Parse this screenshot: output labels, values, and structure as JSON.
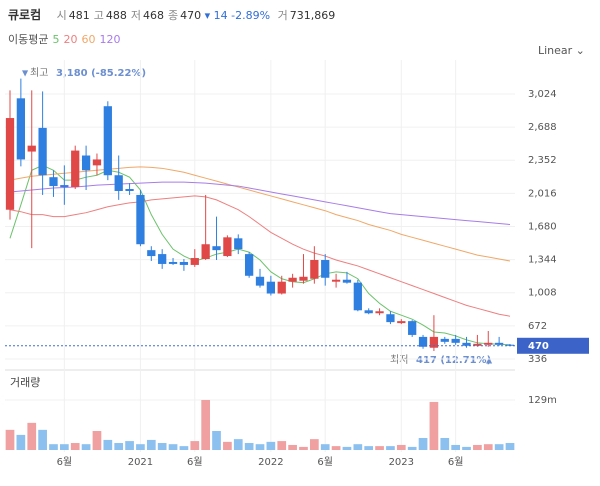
{
  "header": {
    "name": "큐로컴",
    "items": [
      {
        "k": "시",
        "v": "481"
      },
      {
        "k": "고",
        "v": "488"
      },
      {
        "k": "저",
        "v": "468"
      },
      {
        "k": "종",
        "v": "470"
      }
    ],
    "change": "14",
    "change_pct": "-2.89%",
    "volume_key": "거",
    "volume": "731,869"
  },
  "chart_data": {
    "type": "candlestick",
    "scale": "Linear",
    "ma_title": "이동평균",
    "categories": [
      null,
      null,
      null,
      null,
      null,
      "6월",
      null,
      null,
      null,
      null,
      null,
      null,
      "2021",
      null,
      null,
      null,
      null,
      "6월",
      null,
      null,
      null,
      null,
      null,
      null,
      "2022",
      null,
      null,
      null,
      null,
      "6월",
      null,
      null,
      null,
      null,
      null,
      null,
      "2023",
      null,
      null,
      null,
      null,
      "6월",
      null,
      null,
      null,
      null,
      null
    ],
    "open": [
      1850,
      2980,
      2440,
      2680,
      2180,
      2100,
      2080,
      2400,
      2300,
      2900,
      2200,
      2060,
      2000,
      1440,
      1400,
      1320,
      1320,
      1290,
      1350,
      1480,
      1380,
      1560,
      1400,
      1170,
      1120,
      1000,
      1120,
      1130,
      1150,
      1340,
      1120,
      1140,
      1110,
      830,
      800,
      790,
      700,
      720,
      560,
      450,
      540,
      540,
      500,
      470,
      480,
      500,
      481
    ],
    "high": [
      3060,
      3180,
      3060,
      3050,
      2250,
      2300,
      2500,
      2500,
      2420,
      2950,
      2400,
      2120,
      2050,
      1480,
      1450,
      1360,
      1350,
      1450,
      2000,
      1780,
      1590,
      1600,
      1420,
      1250,
      1180,
      1180,
      1200,
      1400,
      1480,
      1400,
      1200,
      1220,
      1140,
      850,
      850,
      820,
      740,
      730,
      580,
      780,
      560,
      580,
      560,
      580,
      620,
      560,
      488
    ],
    "low": [
      1750,
      2290,
      1460,
      2000,
      1980,
      1900,
      2060,
      2050,
      2200,
      2150,
      1950,
      2000,
      1480,
      1330,
      1250,
      1290,
      1230,
      1270,
      1340,
      1340,
      1370,
      1400,
      1160,
      1060,
      980,
      990,
      1060,
      1100,
      1100,
      1080,
      1060,
      1100,
      820,
      790,
      780,
      690,
      690,
      560,
      440,
      417,
      490,
      480,
      450,
      460,
      460,
      470,
      468
    ],
    "close": [
      2780,
      2360,
      2500,
      2200,
      2090,
      2080,
      2450,
      2250,
      2360,
      2200,
      2040,
      2040,
      1500,
      1380,
      1300,
      1300,
      1290,
      1360,
      1500,
      1440,
      1570,
      1450,
      1180,
      1080,
      1000,
      1120,
      1160,
      1170,
      1340,
      1160,
      1140,
      1110,
      830,
      800,
      820,
      710,
      720,
      580,
      460,
      560,
      510,
      500,
      470,
      490,
      500,
      480,
      470
    ],
    "up_color": "#e04848",
    "down_color": "#2f7fe0",
    "ylim": [
      275,
      3318
    ],
    "yticks": [
      336,
      672,
      {
        "value": 1008,
        "label": "1,008"
      },
      {
        "value": 1344,
        "label": "1,344"
      },
      {
        "value": 1680,
        "label": "1,680"
      },
      {
        "value": 2016,
        "label": "2,016"
      },
      {
        "value": 2352,
        "label": "2,352"
      },
      {
        "value": 2688,
        "label": "2,688"
      },
      {
        "value": 3024,
        "label": "3,024"
      }
    ],
    "grid": true,
    "series": [
      {
        "name": "5",
        "color": "#6cc26c",
        "values": [
          1560,
          1900,
          2250,
          2300,
          2250,
          2150,
          2150,
          2180,
          2200,
          2250,
          2230,
          2180,
          2050,
          1800,
          1600,
          1450,
          1380,
          1330,
          1360,
          1400,
          1420,
          1450,
          1420,
          1340,
          1220,
          1150,
          1120,
          1110,
          1150,
          1200,
          1220,
          1210,
          1150,
          1000,
          900,
          820,
          780,
          740,
          680,
          610,
          600,
          570,
          530,
          500,
          490,
          485,
          480
        ]
      },
      {
        "name": "20",
        "color": "#ee7f7f",
        "values": [
          1850,
          1830,
          1800,
          1800,
          1780,
          1780,
          1800,
          1820,
          1850,
          1880,
          1900,
          1920,
          1930,
          1950,
          1960,
          1970,
          1980,
          1990,
          1980,
          1950,
          1900,
          1850,
          1780,
          1700,
          1620,
          1560,
          1500,
          1450,
          1410,
          1380,
          1340,
          1310,
          1280,
          1240,
          1200,
          1160,
          1120,
          1080,
          1040,
          1000,
          960,
          920,
          880,
          850,
          820,
          790,
          770
        ]
      },
      {
        "name": "60",
        "color": "#f0a868",
        "values": [
          2150,
          2170,
          2190,
          2200,
          2210,
          2220,
          2230,
          2240,
          2250,
          2260,
          2270,
          2280,
          2285,
          2280,
          2270,
          2250,
          2230,
          2200,
          2170,
          2140,
          2110,
          2080,
          2050,
          2020,
          1990,
          1960,
          1930,
          1900,
          1870,
          1840,
          1800,
          1770,
          1740,
          1700,
          1670,
          1640,
          1600,
          1570,
          1540,
          1510,
          1480,
          1450,
          1420,
          1390,
          1370,
          1350,
          1330
        ]
      },
      {
        "name": "120",
        "color": "#a87ce8",
        "values": [
          2030,
          2040,
          2050,
          2060,
          2070,
          2075,
          2080,
          2090,
          2100,
          2105,
          2110,
          2115,
          2120,
          2125,
          2130,
          2130,
          2130,
          2125,
          2120,
          2110,
          2100,
          2090,
          2070,
          2050,
          2030,
          2010,
          1990,
          1970,
          1950,
          1930,
          1910,
          1890,
          1870,
          1850,
          1830,
          1810,
          1800,
          1790,
          1780,
          1770,
          1760,
          1750,
          1740,
          1730,
          1720,
          1710,
          1700
        ]
      }
    ],
    "annotations": {
      "high_label": "최고",
      "high_value": "3,180 (-85.22%)",
      "low_label": "최저",
      "low_value": "417 (12.71%)"
    },
    "volume": {
      "title": "거래량",
      "ylim": [
        0,
        193.5
      ],
      "yticks": [
        {
          "value": 129,
          "label": "129m"
        }
      ],
      "up_color": "#f0a0a0",
      "down_color": "#8cc0ee",
      "values": [
        52,
        39,
        70,
        52,
        15,
        15,
        18,
        15,
        49,
        26,
        18,
        23,
        15,
        26,
        18,
        15,
        10,
        23,
        129,
        49,
        21,
        28,
        18,
        15,
        21,
        23,
        13,
        8,
        28,
        15,
        10,
        8,
        15,
        10,
        10,
        10,
        13,
        8,
        31,
        124,
        31,
        13,
        8,
        13,
        15,
        15,
        18
      ]
    }
  }
}
